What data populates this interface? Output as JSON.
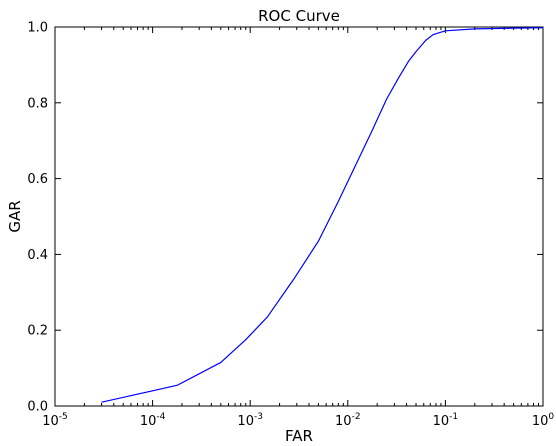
{
  "chart_data": {
    "type": "line",
    "title": "ROC Curve",
    "xlabel": "FAR",
    "ylabel": "GAR",
    "xscale": "log",
    "xlim": [
      1e-05,
      1
    ],
    "ylim": [
      0,
      1
    ],
    "grid": false,
    "x_ticks": [
      {
        "value": 1e-05,
        "base": "10",
        "exp": "-5"
      },
      {
        "value": 0.0001,
        "base": "10",
        "exp": "-4"
      },
      {
        "value": 0.001,
        "base": "10",
        "exp": "-3"
      },
      {
        "value": 0.01,
        "base": "10",
        "exp": "-2"
      },
      {
        "value": 0.1,
        "base": "10",
        "exp": "-1"
      },
      {
        "value": 1,
        "base": "10",
        "exp": "0"
      }
    ],
    "y_ticks": [
      {
        "value": 0.0,
        "label": "0.0"
      },
      {
        "value": 0.2,
        "label": "0.2"
      },
      {
        "value": 0.4,
        "label": "0.4"
      },
      {
        "value": 0.6,
        "label": "0.6"
      },
      {
        "value": 0.8,
        "label": "0.8"
      },
      {
        "value": 1.0,
        "label": "1.0"
      }
    ],
    "series": [
      {
        "color": "#0000ff",
        "x": [
          3e-05,
          0.0001,
          0.00018,
          0.0005,
          0.0009,
          0.0015,
          0.0028,
          0.005,
          0.008,
          0.012,
          0.018,
          0.025,
          0.033,
          0.042,
          0.05,
          0.063,
          0.075,
          0.1,
          0.2,
          0.5,
          1.0
        ],
        "y": [
          0.01,
          0.04,
          0.055,
          0.115,
          0.175,
          0.235,
          0.335,
          0.435,
          0.54,
          0.635,
          0.73,
          0.81,
          0.865,
          0.91,
          0.935,
          0.965,
          0.98,
          0.99,
          0.995,
          0.997,
          0.998
        ]
      }
    ]
  }
}
